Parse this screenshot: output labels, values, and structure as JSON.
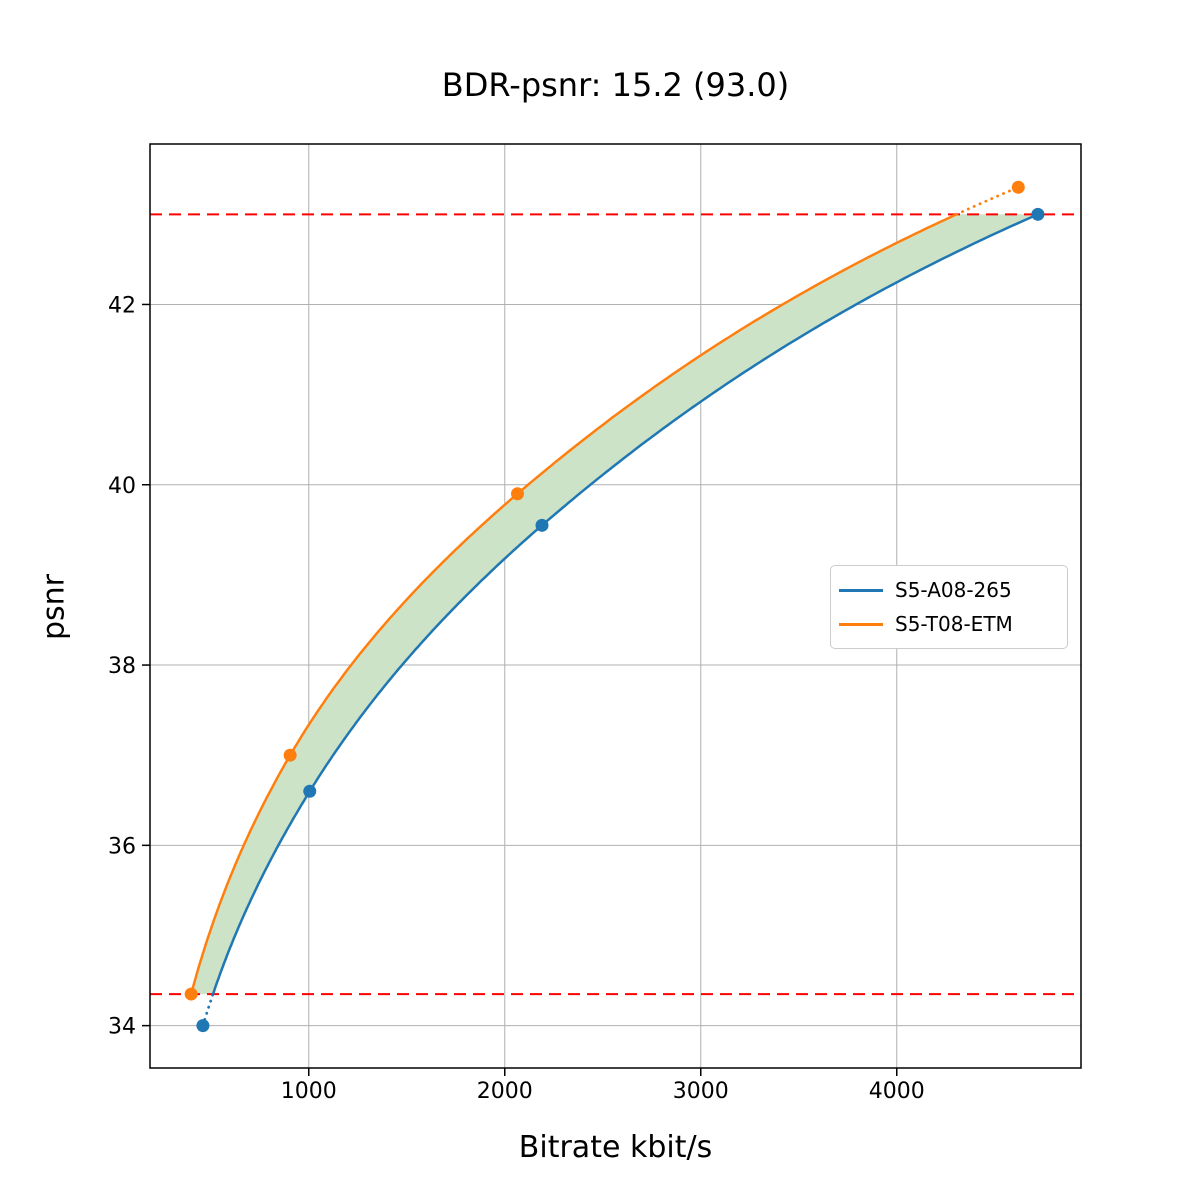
{
  "title": "BDR-psnr: 15.2 (93.0)",
  "chart_data": {
    "type": "line",
    "title": "BDR-psnr: 15.2 (93.0)",
    "xlabel": "Bitrate kbit/s",
    "ylabel": "psnr",
    "xlim": [
      190,
      4940
    ],
    "ylim": [
      33.53,
      43.78
    ],
    "xticks": [
      1000,
      2000,
      3000,
      4000
    ],
    "yticks": [
      34,
      36,
      38,
      40,
      42
    ],
    "grid": true,
    "grid_color": "#b0b0b0",
    "legend_position": "center right",
    "series": [
      {
        "name": "S5-A08-265",
        "color": "#1f77b4",
        "marker": "o",
        "x": [
          460,
          1005,
          2190,
          4720
        ],
        "y": [
          34.0,
          36.6,
          39.55,
          43.0
        ]
      },
      {
        "name": "S5-T08-ETM",
        "color": "#ff7f0e",
        "marker": "o",
        "x": [
          400,
          905,
          2065,
          4620
        ],
        "y": [
          34.35,
          37.0,
          39.9,
          43.3
        ]
      }
    ],
    "overlap_band": {
      "psnr_low": 34.35,
      "psnr_high": 43.0,
      "line_color": "#ff0000",
      "line_style": "dashed",
      "fill_color": "#cde3c8"
    }
  }
}
